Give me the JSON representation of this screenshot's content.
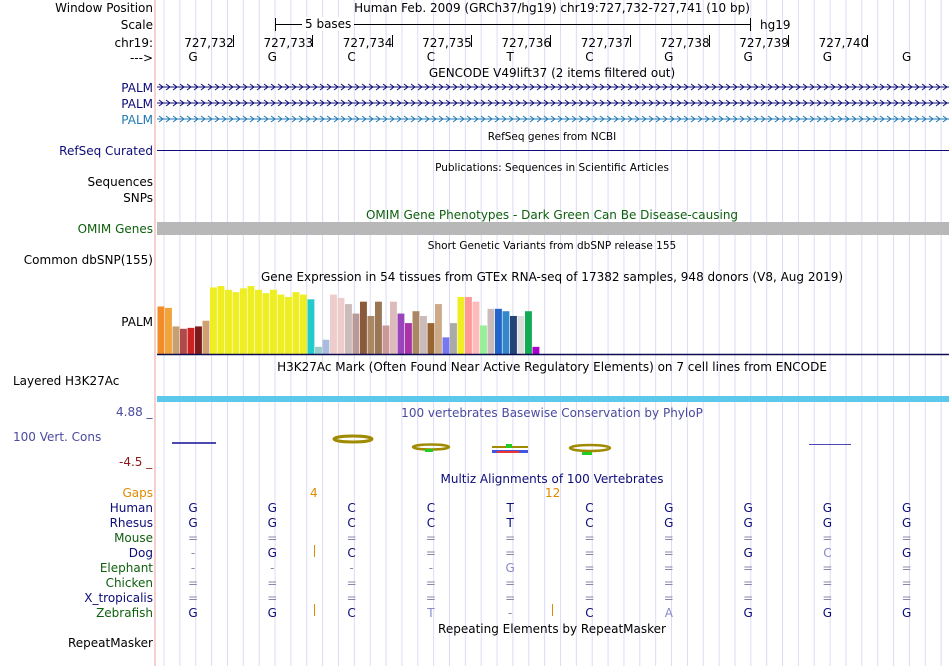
{
  "header": {
    "window_position_label": "Window Position",
    "scale_label": "Scale",
    "chrom_label": "chr19:",
    "strand_label": "--->",
    "assembly_title": "Human Feb. 2009 (GRCh37/hg19)   chr19:727,732-727,741 (10 bp)",
    "scale_text": "5 bases",
    "genome_label": "hg19",
    "positions": [
      "727,732",
      "727,733",
      "727,734",
      "727,735",
      "727,736",
      "727,737",
      "727,738",
      "727,739",
      "727,740"
    ],
    "bases": [
      "G",
      "G",
      "C",
      "C",
      "T",
      "C",
      "G",
      "G",
      "G",
      "G"
    ]
  },
  "tracks": {
    "gencode": {
      "title": "GENCODE V49lift37 (2 items filtered out)",
      "items": [
        "PALM",
        "PALM",
        "PALM"
      ]
    },
    "refseq": {
      "title": "RefSeq genes from NCBI",
      "label": "RefSeq Curated"
    },
    "publications": {
      "title": "Publications: Sequences in Scientific Articles",
      "label1": "Sequences",
      "label2": "SNPs"
    },
    "omim": {
      "title": "OMIM Gene Phenotypes - Dark Green Can Be Disease-causing",
      "label": "OMIM Genes"
    },
    "dbsnp": {
      "title": "Short Genetic Variants from dbSNP release 155",
      "label": "Common dbSNP(155)"
    },
    "gtex": {
      "title": "Gene Expression in 54 tissues from GTEx RNA-seq of 17382 samples, 948 donors (V8, Aug 2019)",
      "label": "PALM",
      "bars": [
        {
          "value": 1.0,
          "color": "#f28c28"
        },
        {
          "value": 0.97,
          "color": "#f2a33a"
        },
        {
          "value": 0.58,
          "color": "#c8a070"
        },
        {
          "value": 0.53,
          "color": "#b04a4a"
        },
        {
          "value": 0.55,
          "color": "#cc2222"
        },
        {
          "value": 0.58,
          "color": "#7a1a1a"
        },
        {
          "value": 0.7,
          "color": "#d0a070"
        },
        {
          "value": 1.4,
          "color": "#eeee22"
        },
        {
          "value": 1.43,
          "color": "#eeee22"
        },
        {
          "value": 1.35,
          "color": "#eeee22"
        },
        {
          "value": 1.3,
          "color": "#eeee22"
        },
        {
          "value": 1.38,
          "color": "#eeee22"
        },
        {
          "value": 1.43,
          "color": "#eeee22"
        },
        {
          "value": 1.35,
          "color": "#eeee22"
        },
        {
          "value": 1.28,
          "color": "#eeee22"
        },
        {
          "value": 1.35,
          "color": "#eeee22"
        },
        {
          "value": 1.25,
          "color": "#eeee22"
        },
        {
          "value": 1.2,
          "color": "#eeee22"
        },
        {
          "value": 1.3,
          "color": "#eeee22"
        },
        {
          "value": 1.25,
          "color": "#eeee22"
        },
        {
          "value": 1.15,
          "color": "#22cccc"
        },
        {
          "value": 0.15,
          "color": "#99cccc"
        },
        {
          "value": 0.3,
          "color": "#aabbdd"
        },
        {
          "value": 1.25,
          "color": "#eecccc"
        },
        {
          "value": 1.18,
          "color": "#eecccc"
        },
        {
          "value": 1.05,
          "color": "#ccbbbb"
        },
        {
          "value": 0.85,
          "color": "#bb9999"
        },
        {
          "value": 1.1,
          "color": "#8b5a3a"
        },
        {
          "value": 0.8,
          "color": "#aa8866"
        },
        {
          "value": 1.1,
          "color": "#997755"
        },
        {
          "value": 0.6,
          "color": "#cc9999"
        },
        {
          "value": 1.1,
          "color": "#ddbbbb"
        },
        {
          "value": 0.85,
          "color": "#9944bb"
        },
        {
          "value": 0.65,
          "color": "#aa33aa"
        },
        {
          "value": 0.9,
          "color": "#aa8866"
        },
        {
          "value": 0.8,
          "color": "#ccbbbb"
        },
        {
          "value": 0.65,
          "color": "#996633"
        },
        {
          "value": 1.05,
          "color": "#ccaa88"
        },
        {
          "value": 0.35,
          "color": "#7777ee"
        },
        {
          "value": 0.65,
          "color": "#aaaaaa"
        },
        {
          "value": 1.2,
          "color": "#eeee22"
        },
        {
          "value": 1.2,
          "color": "#ff9999"
        },
        {
          "value": 1.1,
          "color": "#ffbbbb"
        },
        {
          "value": 0.6,
          "color": "#99ee99"
        },
        {
          "value": 0.95,
          "color": "#ccbbbb"
        },
        {
          "value": 0.95,
          "color": "#2266cc"
        },
        {
          "value": 0.9,
          "color": "#3388cc"
        },
        {
          "value": 0.8,
          "color": "#224477"
        },
        {
          "value": 0.8,
          "color": "#dddddd"
        },
        {
          "value": 0.9,
          "color": "#11aa55"
        },
        {
          "value": 0.15,
          "color": "#aa00cc"
        }
      ]
    },
    "h3k27ac": {
      "title": "H3K27Ac Mark (Often Found Near Active Regulatory Elements) on 7 cell lines from ENCODE",
      "label": "Layered H3K27Ac"
    },
    "cons": {
      "title": "100 vertebrates Basewise Conservation by PhyloP",
      "label": "100 Vert. Cons",
      "ymax": "4.88 _",
      "ymin": "-4.5 _"
    },
    "multiz": {
      "title": "Multiz Alignments of 100 Vertebrates",
      "gaps_label": "Gaps",
      "gap_counts": [
        "4",
        "12"
      ],
      "species": [
        {
          "name": "Human",
          "color": "#0c0c78",
          "bases": [
            "G",
            "G",
            "C",
            "C",
            "T",
            "C",
            "G",
            "G",
            "G",
            "G"
          ]
        },
        {
          "name": "Rhesus",
          "color": "#0c0c78",
          "bases": [
            "G",
            "G",
            "C",
            "C",
            "T",
            "C",
            "G",
            "G",
            "G",
            "G"
          ]
        },
        {
          "name": "Mouse",
          "color": "#0d5f0d",
          "bases": [
            "=",
            "=",
            "=",
            "=",
            "=",
            "=",
            "=",
            "=",
            "=",
            "="
          ]
        },
        {
          "name": "Dog",
          "color": "#0c0c78",
          "bases": [
            "-",
            "G",
            "C",
            "=",
            "=",
            "=",
            "=",
            "G",
            "C",
            "G"
          ]
        },
        {
          "name": "Elephant",
          "color": "#0d5f0d",
          "bases": [
            "-",
            "-",
            "-",
            "-",
            "G",
            "=",
            "=",
            "=",
            "=",
            "="
          ]
        },
        {
          "name": "Chicken",
          "color": "#0d5f0d",
          "bases": [
            "=",
            "=",
            "=",
            "=",
            "=",
            "=",
            "=",
            "=",
            "=",
            "="
          ]
        },
        {
          "name": "X_tropicalis",
          "color": "#0c0c78",
          "bases": [
            "=",
            "=",
            "=",
            "=",
            "=",
            "=",
            "=",
            "=",
            "=",
            "="
          ]
        },
        {
          "name": "Zebrafish",
          "color": "#0d5f0d",
          "bases": [
            "G",
            "G",
            "C",
            "T",
            "-",
            "C",
            "A",
            "G",
            "G",
            "G"
          ]
        }
      ]
    },
    "repeatmasker": {
      "title": "Repeating Elements by RepeatMasker",
      "label": "RepeatMasker"
    }
  }
}
